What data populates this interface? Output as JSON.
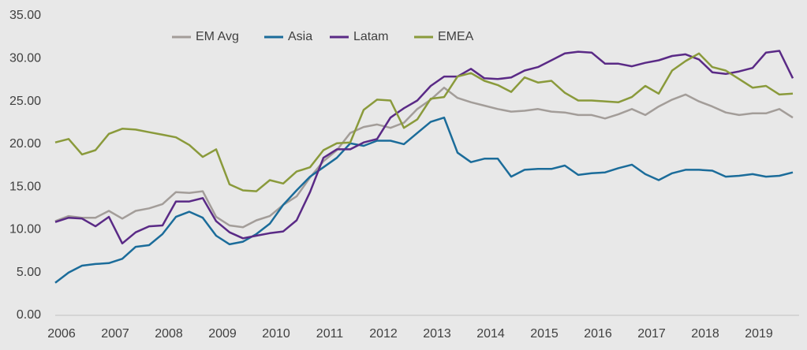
{
  "chart_data": {
    "type": "line",
    "categories": [
      "2006",
      null,
      null,
      null,
      "2007",
      null,
      null,
      null,
      "2008",
      null,
      null,
      null,
      "2009",
      null,
      null,
      null,
      "2010",
      null,
      null,
      null,
      "2011",
      null,
      null,
      null,
      "2012",
      null,
      null,
      null,
      "2013",
      null,
      null,
      null,
      "2014",
      null,
      null,
      null,
      "2015",
      null,
      null,
      null,
      "2016",
      null,
      null,
      null,
      "2017",
      null,
      null,
      null,
      "2018",
      null,
      null,
      null,
      "2019",
      null,
      null,
      null
    ],
    "series": [
      {
        "name": "EM Avg",
        "color": "#a39d99",
        "values": [
          11.0,
          11.6,
          11.4,
          11.4,
          12.2,
          11.3,
          12.2,
          12.5,
          13.0,
          14.4,
          14.3,
          14.5,
          11.5,
          10.5,
          10.3,
          11.1,
          11.6,
          12.9,
          13.9,
          16.1,
          18.0,
          19.3,
          21.3,
          22.0,
          22.3,
          21.9,
          22.5,
          24.1,
          25.2,
          26.6,
          25.4,
          24.9,
          24.5,
          24.1,
          23.8,
          23.9,
          24.1,
          23.8,
          23.7,
          23.4,
          23.4,
          23.0,
          23.5,
          24.1,
          23.4,
          24.4,
          25.2,
          25.8,
          25.0,
          24.4,
          23.7,
          23.4,
          23.6,
          23.6,
          24.1,
          23.1
        ]
      },
      {
        "name": "Asia",
        "color": "#1b6c9a",
        "values": [
          3.8,
          5.0,
          5.8,
          6.0,
          6.1,
          6.6,
          8.0,
          8.2,
          9.5,
          11.5,
          12.1,
          11.4,
          9.3,
          8.3,
          8.6,
          9.5,
          10.7,
          12.9,
          14.6,
          16.2,
          17.3,
          18.4,
          20.1,
          19.8,
          20.4,
          20.4,
          20.0,
          21.3,
          22.6,
          23.1,
          19.0,
          17.9,
          18.3,
          18.3,
          16.2,
          17.0,
          17.1,
          17.1,
          17.5,
          16.4,
          16.6,
          16.7,
          17.2,
          17.6,
          16.5,
          15.8,
          16.6,
          17.0,
          17.0,
          16.9,
          16.2,
          16.3,
          16.5,
          16.2,
          16.3,
          16.7
        ]
      },
      {
        "name": "Latam",
        "color": "#5a2a86",
        "values": [
          10.9,
          11.4,
          11.3,
          10.4,
          11.5,
          8.4,
          9.7,
          10.4,
          10.5,
          13.3,
          13.3,
          13.7,
          11.0,
          9.7,
          9.0,
          9.3,
          9.6,
          9.8,
          11.1,
          14.4,
          18.4,
          19.4,
          19.4,
          20.2,
          20.6,
          23.1,
          24.2,
          25.1,
          26.8,
          27.9,
          27.9,
          28.8,
          27.7,
          27.6,
          27.8,
          28.6,
          29.0,
          29.8,
          30.6,
          30.8,
          30.7,
          29.4,
          29.4,
          29.1,
          29.5,
          29.8,
          30.3,
          30.5,
          29.9,
          28.4,
          28.2,
          28.5,
          28.9,
          30.7,
          30.9,
          27.7
        ]
      },
      {
        "name": "EMEA",
        "color": "#8a9a3b",
        "values": [
          20.2,
          20.6,
          18.8,
          19.3,
          21.2,
          21.8,
          21.7,
          21.4,
          21.1,
          20.8,
          19.9,
          18.5,
          19.4,
          15.3,
          14.6,
          14.5,
          15.8,
          15.4,
          16.8,
          17.3,
          19.3,
          20.1,
          20.2,
          24.0,
          25.2,
          25.1,
          21.9,
          22.9,
          25.3,
          25.5,
          27.9,
          28.3,
          27.4,
          26.9,
          26.1,
          27.8,
          27.2,
          27.4,
          26.0,
          25.1,
          25.1,
          25.0,
          24.9,
          25.5,
          26.8,
          25.9,
          28.6,
          29.7,
          30.6,
          29.0,
          28.6,
          27.6,
          26.6,
          26.8,
          25.8,
          25.9
        ]
      }
    ],
    "ylim": [
      0,
      35
    ],
    "yticks": [
      {
        "value": 0,
        "label": "0.00"
      },
      {
        "value": 5,
        "label": "5.00"
      },
      {
        "value": 10,
        "label": "10.00"
      },
      {
        "value": 15,
        "label": "15.00"
      },
      {
        "value": 20,
        "label": "20.00"
      },
      {
        "value": 25,
        "label": "25.00"
      },
      {
        "value": 30,
        "label": "30.00"
      },
      {
        "value": 35,
        "label": "35.00"
      }
    ],
    "legend": "top"
  }
}
